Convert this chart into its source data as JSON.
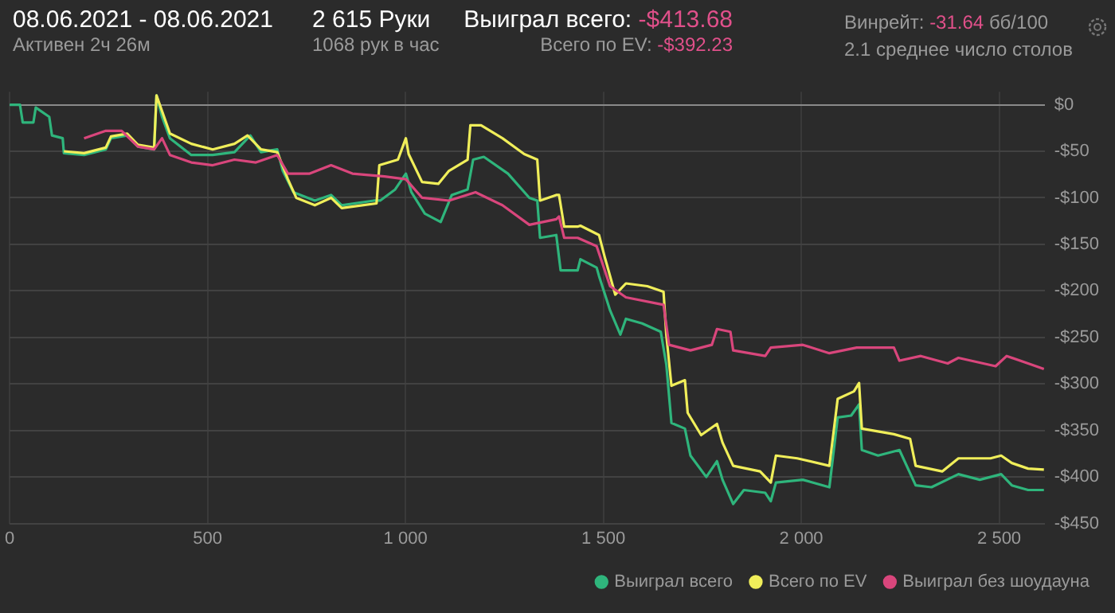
{
  "chart_data": {
    "type": "line",
    "title": "08.06.2021 - 08.06.2021",
    "subtitle": "Активен 2ч 26м",
    "annotations": [
      "2 615 Руки",
      "1068 рук в час",
      "Выиграл всего:",
      "-$413.68",
      "Всего по EV:",
      "-$392.23",
      "Винрейт:",
      "-31.64",
      "бб/100",
      "2.1 среднее число столов"
    ],
    "xlim": [
      0,
      2615
    ],
    "xticks": [
      0,
      500,
      {
        "value": 1000,
        "label": "1 000"
      },
      {
        "value": 1500,
        "label": "1 500"
      },
      {
        "value": 2000,
        "label": "2 000"
      },
      {
        "value": 2500,
        "label": "2 500"
      }
    ],
    "ylim": [
      -450,
      14
    ],
    "yticks": [
      {
        "value": 0,
        "label": "$0"
      },
      {
        "value": -50,
        "label": "-$50"
      },
      {
        "value": -100,
        "label": "-$100"
      },
      {
        "value": -150,
        "label": "-$150"
      },
      {
        "value": -200,
        "label": "-$200"
      },
      {
        "value": -250,
        "label": "-$250"
      },
      {
        "value": -300,
        "label": "-$300"
      },
      {
        "value": -350,
        "label": "-$350"
      },
      {
        "value": -400,
        "label": "-$400"
      },
      {
        "value": -450,
        "label": "-$450"
      }
    ],
    "grid": true,
    "legend": "bottom right",
    "marker": "none",
    "line_style": "solid",
    "series": [
      {
        "name": "Выиграл без шоудауна",
        "color": "#d9467c",
        "x": [
          188,
          243,
          283,
          324,
          365,
          385,
          405,
          459,
          513,
          568,
          622,
          676,
          703,
          758,
          812,
          866,
          947,
          1001,
          1042,
          1110,
          1177,
          1245,
          1313,
          1381,
          1388,
          1401,
          1435,
          1483,
          1517,
          1557,
          1652,
          1666,
          1720,
          1774,
          1787,
          1821,
          1828,
          1909,
          1923,
          2004,
          2071,
          2140,
          2234,
          2248,
          2302,
          2370,
          2397,
          2491,
          2519,
          2573,
          2613
        ],
        "values": [
          -36,
          -28,
          -28,
          -45,
          -48,
          -36,
          -54,
          -62,
          -65,
          -59,
          -62,
          -54,
          -74,
          -74,
          -65,
          -74,
          -77,
          -80,
          -100,
          -103,
          -94,
          -108,
          -129,
          -123,
          -120,
          -143,
          -143,
          -152,
          -195,
          -207,
          -215,
          -258,
          -264,
          -258,
          -241,
          -244,
          -264,
          -270,
          -261,
          -258,
          -267,
          -261,
          -261,
          -275,
          -270,
          -278,
          -272,
          -281,
          -270,
          -278,
          -284
        ]
      },
      {
        "name": "Всего по EV",
        "color": "#f0ee5a",
        "x": [
          137,
          188,
          243,
          256,
          297,
          324,
          365,
          371,
          405,
          459,
          513,
          568,
          601,
          635,
          676,
          703,
          724,
          771,
          812,
          839,
          927,
          934,
          981,
          1001,
          1008,
          1042,
          1083,
          1110,
          1157,
          1164,
          1191,
          1245,
          1300,
          1333,
          1340,
          1381,
          1388,
          1401,
          1435,
          1442,
          1489,
          1503,
          1530,
          1557,
          1611,
          1652,
          1659,
          1672,
          1706,
          1713,
          1747,
          1787,
          1801,
          1828,
          1896,
          1923,
          1936,
          1990,
          2071,
          2092,
          2133,
          2146,
          2153,
          2234,
          2275,
          2289,
          2356,
          2397,
          2478,
          2505,
          2532,
          2573,
          2613
        ],
        "values": [
          -50,
          -52,
          -46,
          -34,
          -31,
          -43,
          -46,
          10,
          -31,
          -42,
          -48,
          -42,
          -33,
          -48,
          -51,
          -80,
          -100,
          -108,
          -100,
          -111,
          -106,
          -65,
          -59,
          -36,
          -53,
          -83,
          -85,
          -71,
          -59,
          -22,
          -22,
          -36,
          -53,
          -59,
          -103,
          -97,
          -97,
          -131,
          -131,
          -130,
          -140,
          -163,
          -204,
          -192,
          -195,
          -201,
          -247,
          -302,
          -296,
          -331,
          -355,
          -343,
          -363,
          -388,
          -394,
          -406,
          -377,
          -380,
          -388,
          -316,
          -308,
          -299,
          -348,
          -354,
          -359,
          -388,
          -394,
          -380,
          -380,
          -377,
          -385,
          -391,
          -392
        ]
      },
      {
        "name": "Выиграл всего",
        "color": "#2fb57c",
        "x": [
          0,
          26,
          33,
          60,
          66,
          100,
          107,
          134,
          137,
          188,
          243,
          256,
          297,
          324,
          365,
          371,
          385,
          405,
          459,
          513,
          568,
          608,
          635,
          676,
          690,
          717,
          771,
          812,
          839,
          920,
          936,
          974,
          1001,
          1015,
          1049,
          1089,
          1117,
          1157,
          1171,
          1198,
          1259,
          1313,
          1333,
          1340,
          1381,
          1392,
          1435,
          1442,
          1483,
          1489,
          1517,
          1543,
          1557,
          1598,
          1645,
          1659,
          1672,
          1706,
          1720,
          1760,
          1787,
          1801,
          1828,
          1855,
          1909,
          1923,
          1936,
          2004,
          2071,
          2092,
          2126,
          2146,
          2153,
          2194,
          2248,
          2289,
          2329,
          2397,
          2451,
          2505,
          2532,
          2573,
          2613
        ],
        "values": [
          0,
          0,
          -19,
          -19,
          -3,
          -13,
          -33,
          -36,
          -52,
          -54,
          -48,
          -36,
          -33,
          -45,
          -48,
          10,
          -13,
          -36,
          -54,
          -54,
          -51,
          -33,
          -51,
          -48,
          -71,
          -94,
          -103,
          -97,
          -108,
          -103,
          -103,
          -91,
          -74,
          -94,
          -117,
          -126,
          -97,
          -91,
          -59,
          -56,
          -74,
          -100,
          -103,
          -143,
          -140,
          -178,
          -178,
          -166,
          -175,
          -184,
          -221,
          -247,
          -230,
          -235,
          -244,
          -279,
          -342,
          -348,
          -377,
          -400,
          -383,
          -403,
          -429,
          -414,
          -417,
          -426,
          -406,
          -403,
          -411,
          -336,
          -334,
          -322,
          -371,
          -377,
          -371,
          -409,
          -411,
          -397,
          -403,
          -397,
          -409,
          -414,
          -414
        ]
      }
    ]
  }
}
